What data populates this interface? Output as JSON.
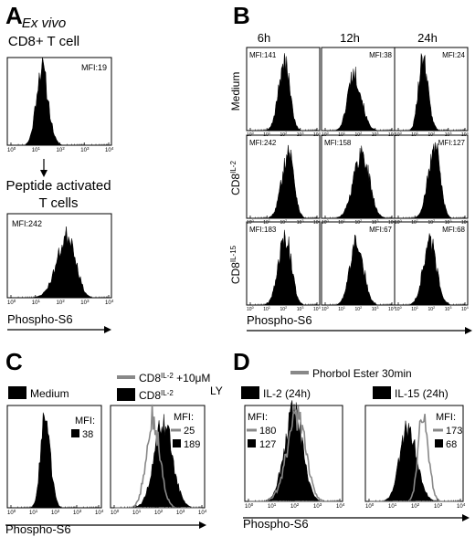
{
  "figure": {
    "panels": {
      "A": {
        "letter": "A",
        "title_line1": "Ex vivo",
        "title_line2": "CD8+ T cell",
        "top_mfi": "MFI:19",
        "activated_line1": "Peptide activated",
        "activated_line2": "T cells",
        "bottom_mfi": "MFI:242",
        "x_axis_label": "Phospho-S6"
      },
      "B": {
        "letter": "B",
        "time_headers": [
          "6h",
          "12h",
          "24h"
        ],
        "row_labels": [
          {
            "base": "Medium",
            "sup": ""
          },
          {
            "base": "CD8",
            "sup": "IL-2"
          },
          {
            "base": "CD8",
            "sup": "IL-15"
          }
        ],
        "mfi": [
          [
            "MFI:141",
            "MFI:38",
            "MFI:24"
          ],
          [
            "MFI:242",
            "MFI:158",
            "MFI:127"
          ],
          [
            "MFI:183",
            "MFI:67",
            "MFI:68"
          ]
        ],
        "x_axis_label": "Phospho-S6"
      },
      "C": {
        "letter": "C",
        "legend_left": "Medium",
        "legend_gray_base": "CD8",
        "legend_gray_sup": "IL-2",
        "legend_gray_suffix": " +10μM",
        "legend_gray_line2": "LY",
        "legend_black_base": "CD8",
        "legend_black_sup": "IL-2",
        "left_mfi_label": "MFI:",
        "left_mfi_value": "38",
        "right_mfi_label": "MFI:",
        "right_mfi_values": [
          "25",
          "189"
        ],
        "x_axis_label": "Phospho-S6"
      },
      "D": {
        "letter": "D",
        "legend_gray": "Phorbol Ester 30min",
        "legend_left": "IL-2 (24h)",
        "legend_right": "IL-15 (24h)",
        "left_mfi_label": "MFI:",
        "left_mfi_values": [
          "180",
          "127"
        ],
        "right_mfi_label": "MFI:",
        "right_mfi_values": [
          "173",
          "68"
        ],
        "x_axis_label": "Phospho-S6"
      }
    },
    "tick_labels": [
      "10",
      "10",
      "10",
      "10",
      "10"
    ],
    "tick_exponents": [
      "0",
      "1",
      "2",
      "3",
      "4"
    ],
    "colors": {
      "fill": "#000000",
      "overlay": "#888888",
      "frame": "#000000"
    }
  },
  "chart_data": [
    {
      "type": "area",
      "panel": "A-top",
      "xscale": "log",
      "xlim": [
        1,
        10000
      ],
      "mfi": 19,
      "series": [
        {
          "name": "Ex vivo CD8+ T cell",
          "values": []
        }
      ]
    },
    {
      "type": "area",
      "panel": "A-bottom",
      "xscale": "log",
      "xlim": [
        1,
        10000
      ],
      "mfi": 242,
      "series": [
        {
          "name": "Peptide activated T cells",
          "values": []
        }
      ]
    },
    {
      "type": "area",
      "panel": "B",
      "xscale": "log",
      "xlim": [
        1,
        10000
      ],
      "rows": [
        "Medium",
        "CD8IL-2",
        "CD8IL-15"
      ],
      "columns": [
        "6h",
        "12h",
        "24h"
      ],
      "mfi": [
        [
          141,
          38,
          24
        ],
        [
          242,
          158,
          127
        ],
        [
          183,
          67,
          68
        ]
      ]
    },
    {
      "type": "area",
      "panel": "C",
      "xscale": "log",
      "xlim": [
        1,
        10000
      ],
      "mfi": {
        "Medium": 38,
        "CD8IL-2 +10μM LY": 25,
        "CD8IL-2": 189
      }
    },
    {
      "type": "area",
      "panel": "D",
      "xscale": "log",
      "xlim": [
        1,
        10000
      ],
      "mfi": {
        "IL-2 (24h)": {
          "Phorbol Ester 30min": 180,
          "24h": 127
        },
        "IL-15 (24h)": {
          "Phorbol Ester 30min": 173,
          "24h": 68
        }
      }
    }
  ]
}
